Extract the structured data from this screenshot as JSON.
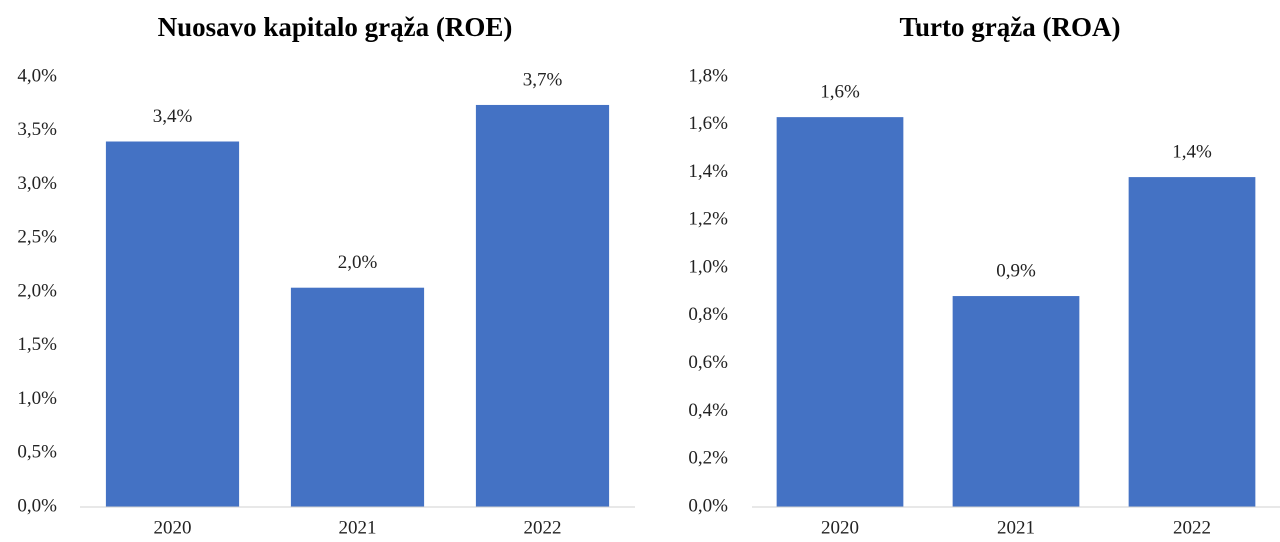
{
  "chart_data": [
    {
      "type": "bar",
      "title": "Nuosavo kapitalo grąža (ROE)",
      "categories": [
        "2020",
        "2021",
        "2022"
      ],
      "values": [
        3.4,
        2.04,
        3.74
      ],
      "value_labels": [
        "3,4%",
        "2,0%",
        "3,7%"
      ],
      "color": "#4472c4",
      "ylim": [
        0,
        4
      ],
      "yticks": [
        {
          "value": 0,
          "label": "0,0%"
        },
        {
          "value": 0.5,
          "label": "0,5%"
        },
        {
          "value": 1,
          "label": "1,0%"
        },
        {
          "value": 1.5,
          "label": "1,5%"
        },
        {
          "value": 2,
          "label": "2,0%"
        },
        {
          "value": 2.5,
          "label": "2,5%"
        },
        {
          "value": 3,
          "label": "3,0%"
        },
        {
          "value": 3.5,
          "label": "3,5%"
        },
        {
          "value": 4,
          "label": "4,0%"
        }
      ],
      "grid": false
    },
    {
      "type": "bar",
      "title": "Turto grąža (ROA)",
      "categories": [
        "2020",
        "2021",
        "2022"
      ],
      "values": [
        1.632,
        0.883,
        1.381
      ],
      "value_labels": [
        "1,6%",
        "0,9%",
        "1,4%"
      ],
      "color": "#4472c4",
      "ylim": [
        0,
        1.8
      ],
      "yticks": [
        {
          "value": 0,
          "label": "0,0%"
        },
        {
          "value": 0.2,
          "label": "0,2%"
        },
        {
          "value": 0.4,
          "label": "0,4%"
        },
        {
          "value": 0.6,
          "label": "0,6%"
        },
        {
          "value": 0.8,
          "label": "0,8%"
        },
        {
          "value": 1,
          "label": "1,0%"
        },
        {
          "value": 1.2,
          "label": "1,2%"
        },
        {
          "value": 1.4,
          "label": "1,4%"
        },
        {
          "value": 1.6,
          "label": "1,6%"
        },
        {
          "value": 1.8,
          "label": "1,8%"
        }
      ],
      "grid": false
    }
  ]
}
